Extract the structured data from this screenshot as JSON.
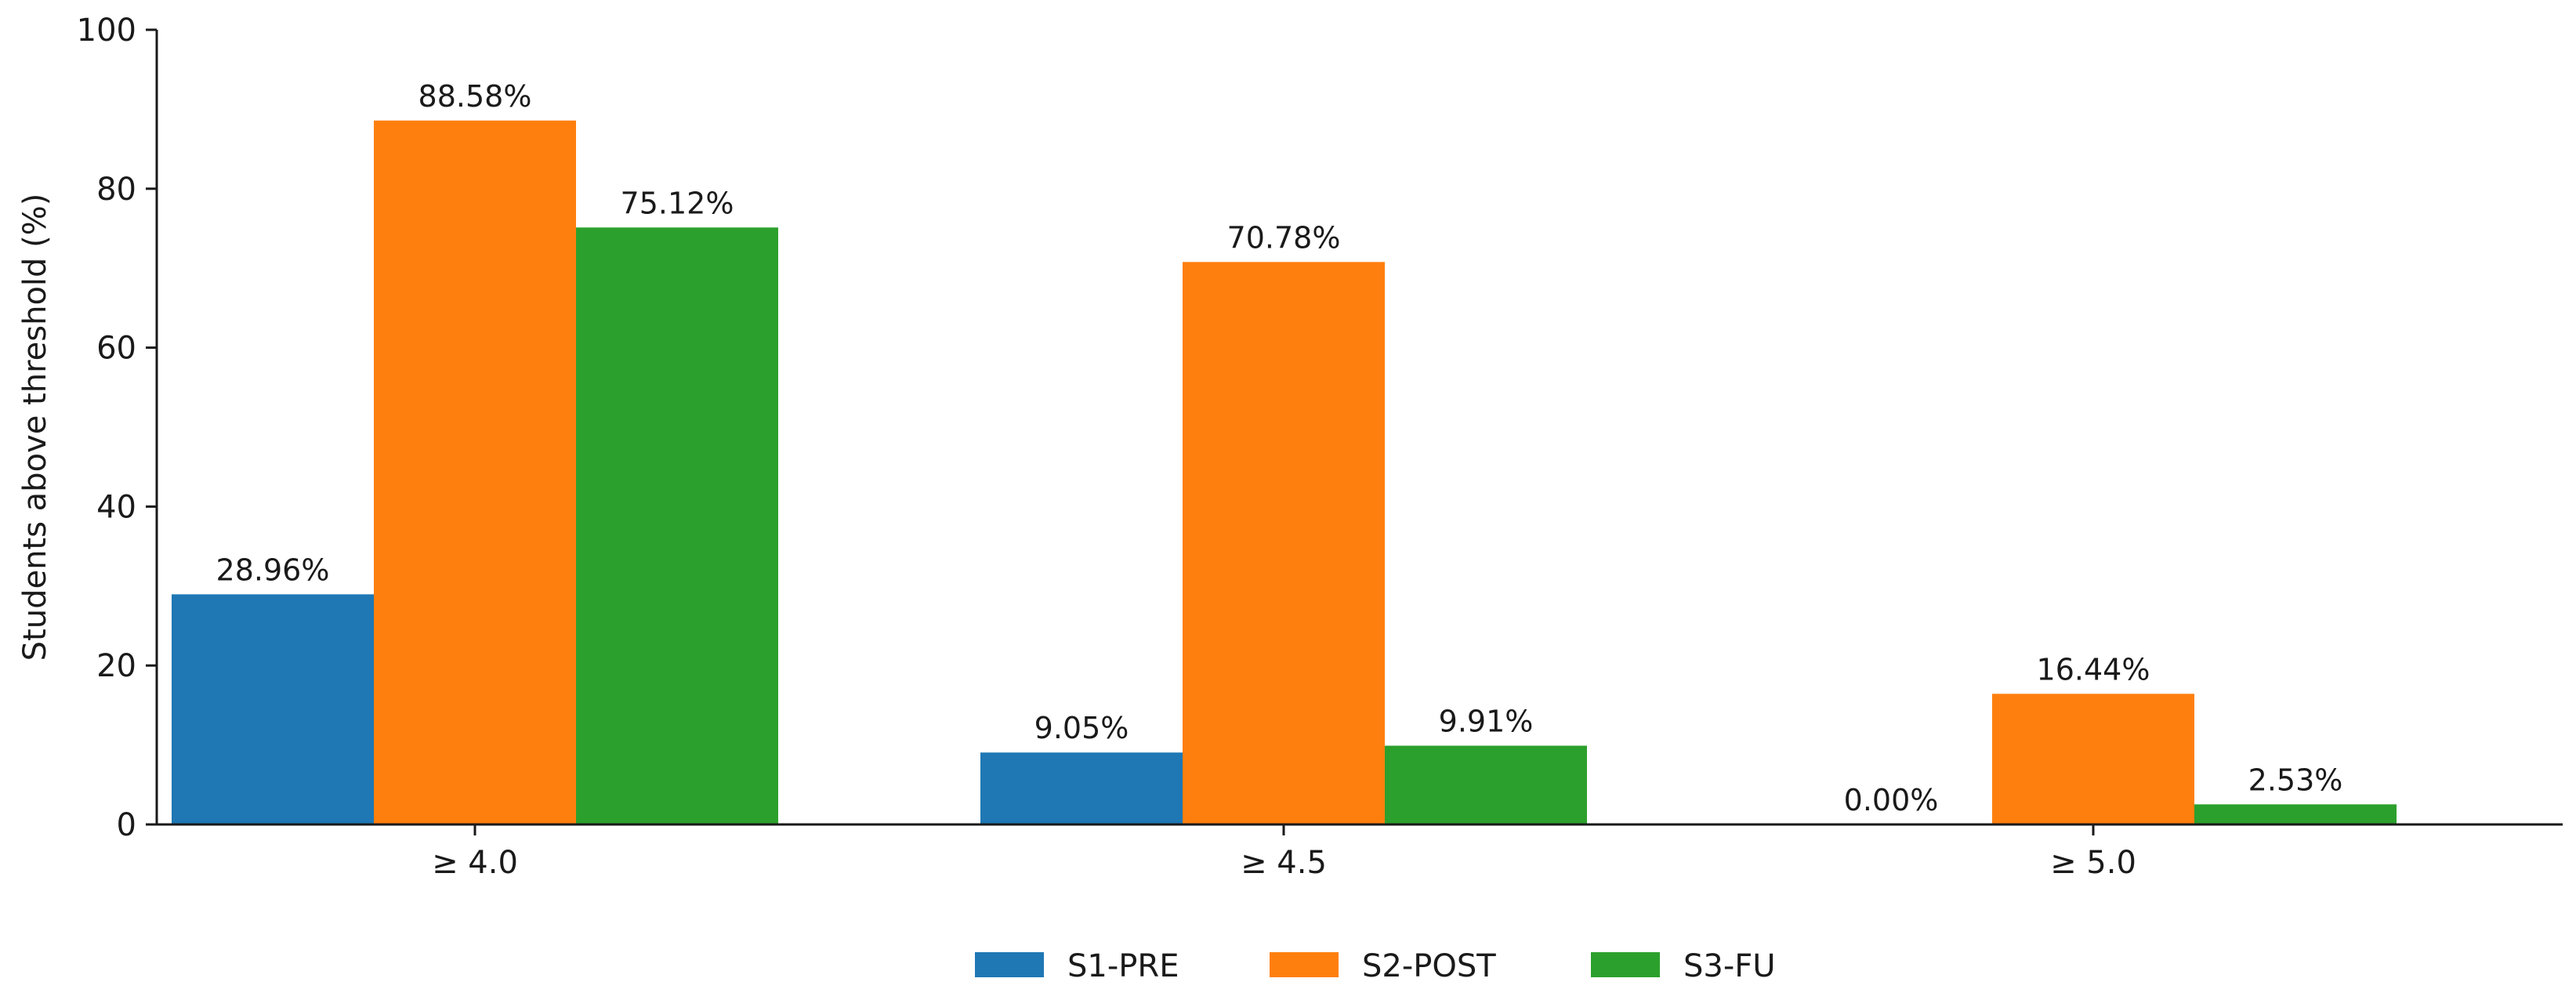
{
  "chart_data": {
    "type": "bar",
    "title": "",
    "xlabel": "",
    "ylabel": "Students above threshold (%)",
    "ylim": [
      0,
      100
    ],
    "yticks": [
      0,
      20,
      40,
      60,
      80,
      100
    ],
    "grid": false,
    "legend_position": "bottom-center",
    "categories": [
      "≥ 4.0",
      "≥ 4.5",
      "≥ 5.0"
    ],
    "series": [
      {
        "name": "S1-PRE",
        "color": "#1f77b4",
        "values": [
          28.96,
          9.05,
          0.0
        ],
        "labels": [
          "28.96%",
          "9.05%",
          "0.00%"
        ]
      },
      {
        "name": "S2-POST",
        "color": "#ff7f0e",
        "values": [
          88.58,
          70.78,
          16.44
        ],
        "labels": [
          "88.58%",
          "70.78%",
          "16.44%"
        ]
      },
      {
        "name": "S3-FU",
        "color": "#2ca02c",
        "values": [
          75.12,
          9.91,
          2.53
        ],
        "labels": [
          "75.12%",
          "9.91%",
          "2.53%"
        ]
      }
    ]
  }
}
